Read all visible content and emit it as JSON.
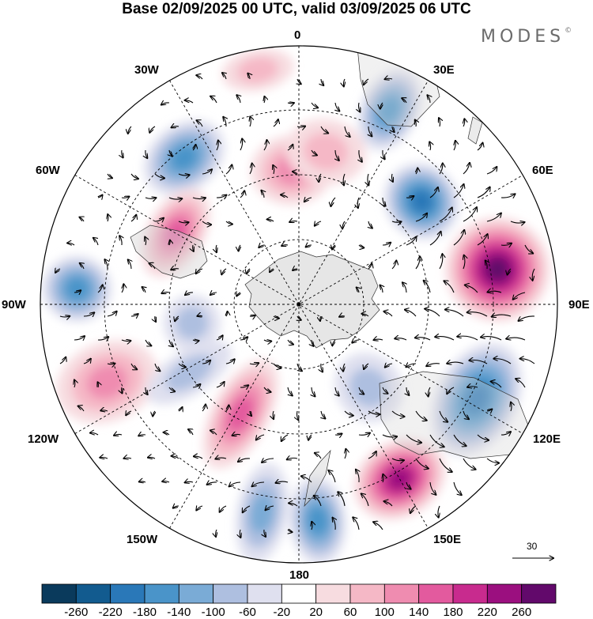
{
  "title": "Base 02/09/2025 00 UTC, valid 03/09/2025 06 UTC",
  "brand": {
    "text": "MODES",
    "mark": "©"
  },
  "longitude_labels": {
    "lon_0": "0",
    "lon_30E": "30E",
    "lon_60E": "60E",
    "lon_90E": "90E",
    "lon_120E": "120E",
    "lon_150E": "150E",
    "lon_180": "180",
    "lon_150W": "150W",
    "lon_120W": "120W",
    "lon_90W": "90W",
    "lon_60W": "60W",
    "lon_30W": "30W"
  },
  "reference_vector": {
    "value": "30"
  },
  "colorbar": {
    "colors": [
      "#0a3a5c",
      "#125b8f",
      "#2a78b8",
      "#4a94c9",
      "#7aabd6",
      "#aebfe0",
      "#dfe0ef",
      "#ffffff",
      "#f7dce0",
      "#f5b8c6",
      "#ef8cb0",
      "#e35a9e",
      "#c82b8e",
      "#9b0f7f",
      "#62096b"
    ],
    "ticks": [
      "-260",
      "-220",
      "-180",
      "-140",
      "-100",
      "-60",
      "-20",
      "20",
      "60",
      "100",
      "140",
      "180",
      "220",
      "260"
    ]
  },
  "field": {
    "anomalies": [
      {
        "lon": -3,
        "r": 0.52,
        "val": 120,
        "sx": 46,
        "sy": 38
      },
      {
        "lon": -38,
        "r": 0.72,
        "val": -170,
        "sx": 50,
        "sy": 36
      },
      {
        "lon": -60,
        "r": 0.55,
        "val": 160,
        "sx": 55,
        "sy": 30
      },
      {
        "lon": -86,
        "r": 0.86,
        "val": -150,
        "sx": 36,
        "sy": 38
      },
      {
        "lon": -112,
        "r": 0.8,
        "val": 120,
        "sx": 44,
        "sy": 60
      },
      {
        "lon": -122,
        "r": 0.5,
        "val": -80,
        "sx": 22,
        "sy": 55
      },
      {
        "lon": -152,
        "r": 0.48,
        "val": 150,
        "sx": 30,
        "sy": 70
      },
      {
        "lon": -170,
        "r": 0.82,
        "val": -100,
        "sx": 26,
        "sy": 58
      },
      {
        "lon": 175,
        "r": 0.84,
        "val": -150,
        "sx": 30,
        "sy": 50
      },
      {
        "lon": 150,
        "r": 0.78,
        "val": 240,
        "sx": 55,
        "sy": 42
      },
      {
        "lon": 118,
        "r": 0.78,
        "val": -200,
        "sx": 70,
        "sy": 45
      },
      {
        "lon": 80,
        "r": 0.78,
        "val": 260,
        "sx": 60,
        "sy": 60
      },
      {
        "lon": 50,
        "r": 0.62,
        "val": -200,
        "sx": 44,
        "sy": 40
      },
      {
        "lon": 25,
        "r": 0.83,
        "val": -140,
        "sx": 30,
        "sy": 48
      },
      {
        "lon": 10,
        "r": 0.6,
        "val": 60,
        "sx": 45,
        "sy": 35
      },
      {
        "lon": -10,
        "r": 0.92,
        "val": 80,
        "sx": 40,
        "sy": 20
      },
      {
        "lon": -100,
        "r": 0.42,
        "val": -60,
        "sx": 30,
        "sy": 30
      },
      {
        "lon": 140,
        "r": 0.42,
        "val": -90,
        "sx": 35,
        "sy": 40
      }
    ]
  }
}
